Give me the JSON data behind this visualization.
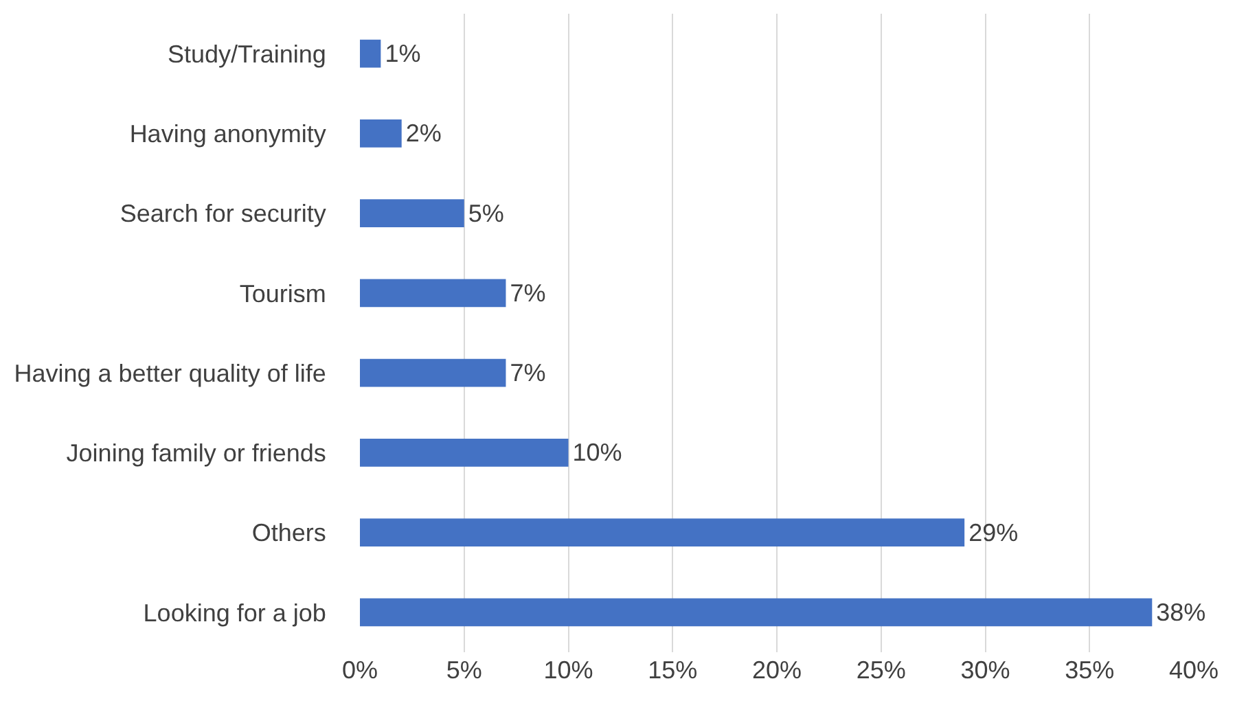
{
  "chart_data": {
    "type": "bar",
    "orientation": "horizontal",
    "categories": [
      "Study/Training",
      "Having anonymity",
      "Search for security",
      "Tourism",
      "Having a better quality of life",
      "Joining family or friends",
      "Others",
      "Looking for a job"
    ],
    "values": [
      1,
      2,
      5,
      7,
      7,
      10,
      29,
      38
    ],
    "value_labels": [
      "1%",
      "2%",
      "5%",
      "7%",
      "7%",
      "10%",
      "29%",
      "38%"
    ],
    "color": "#4472c4",
    "xlim": [
      0,
      40
    ],
    "xticks": [
      {
        "value": 0,
        "label": "0%"
      },
      {
        "value": 5,
        "label": "5%"
      },
      {
        "value": 10,
        "label": "10%"
      },
      {
        "value": 15,
        "label": "15%"
      },
      {
        "value": 20,
        "label": "20%"
      },
      {
        "value": 25,
        "label": "25%"
      },
      {
        "value": 30,
        "label": "30%"
      },
      {
        "value": 35,
        "label": "35%"
      },
      {
        "value": 40,
        "label": "40%"
      }
    ],
    "grid": "x"
  }
}
